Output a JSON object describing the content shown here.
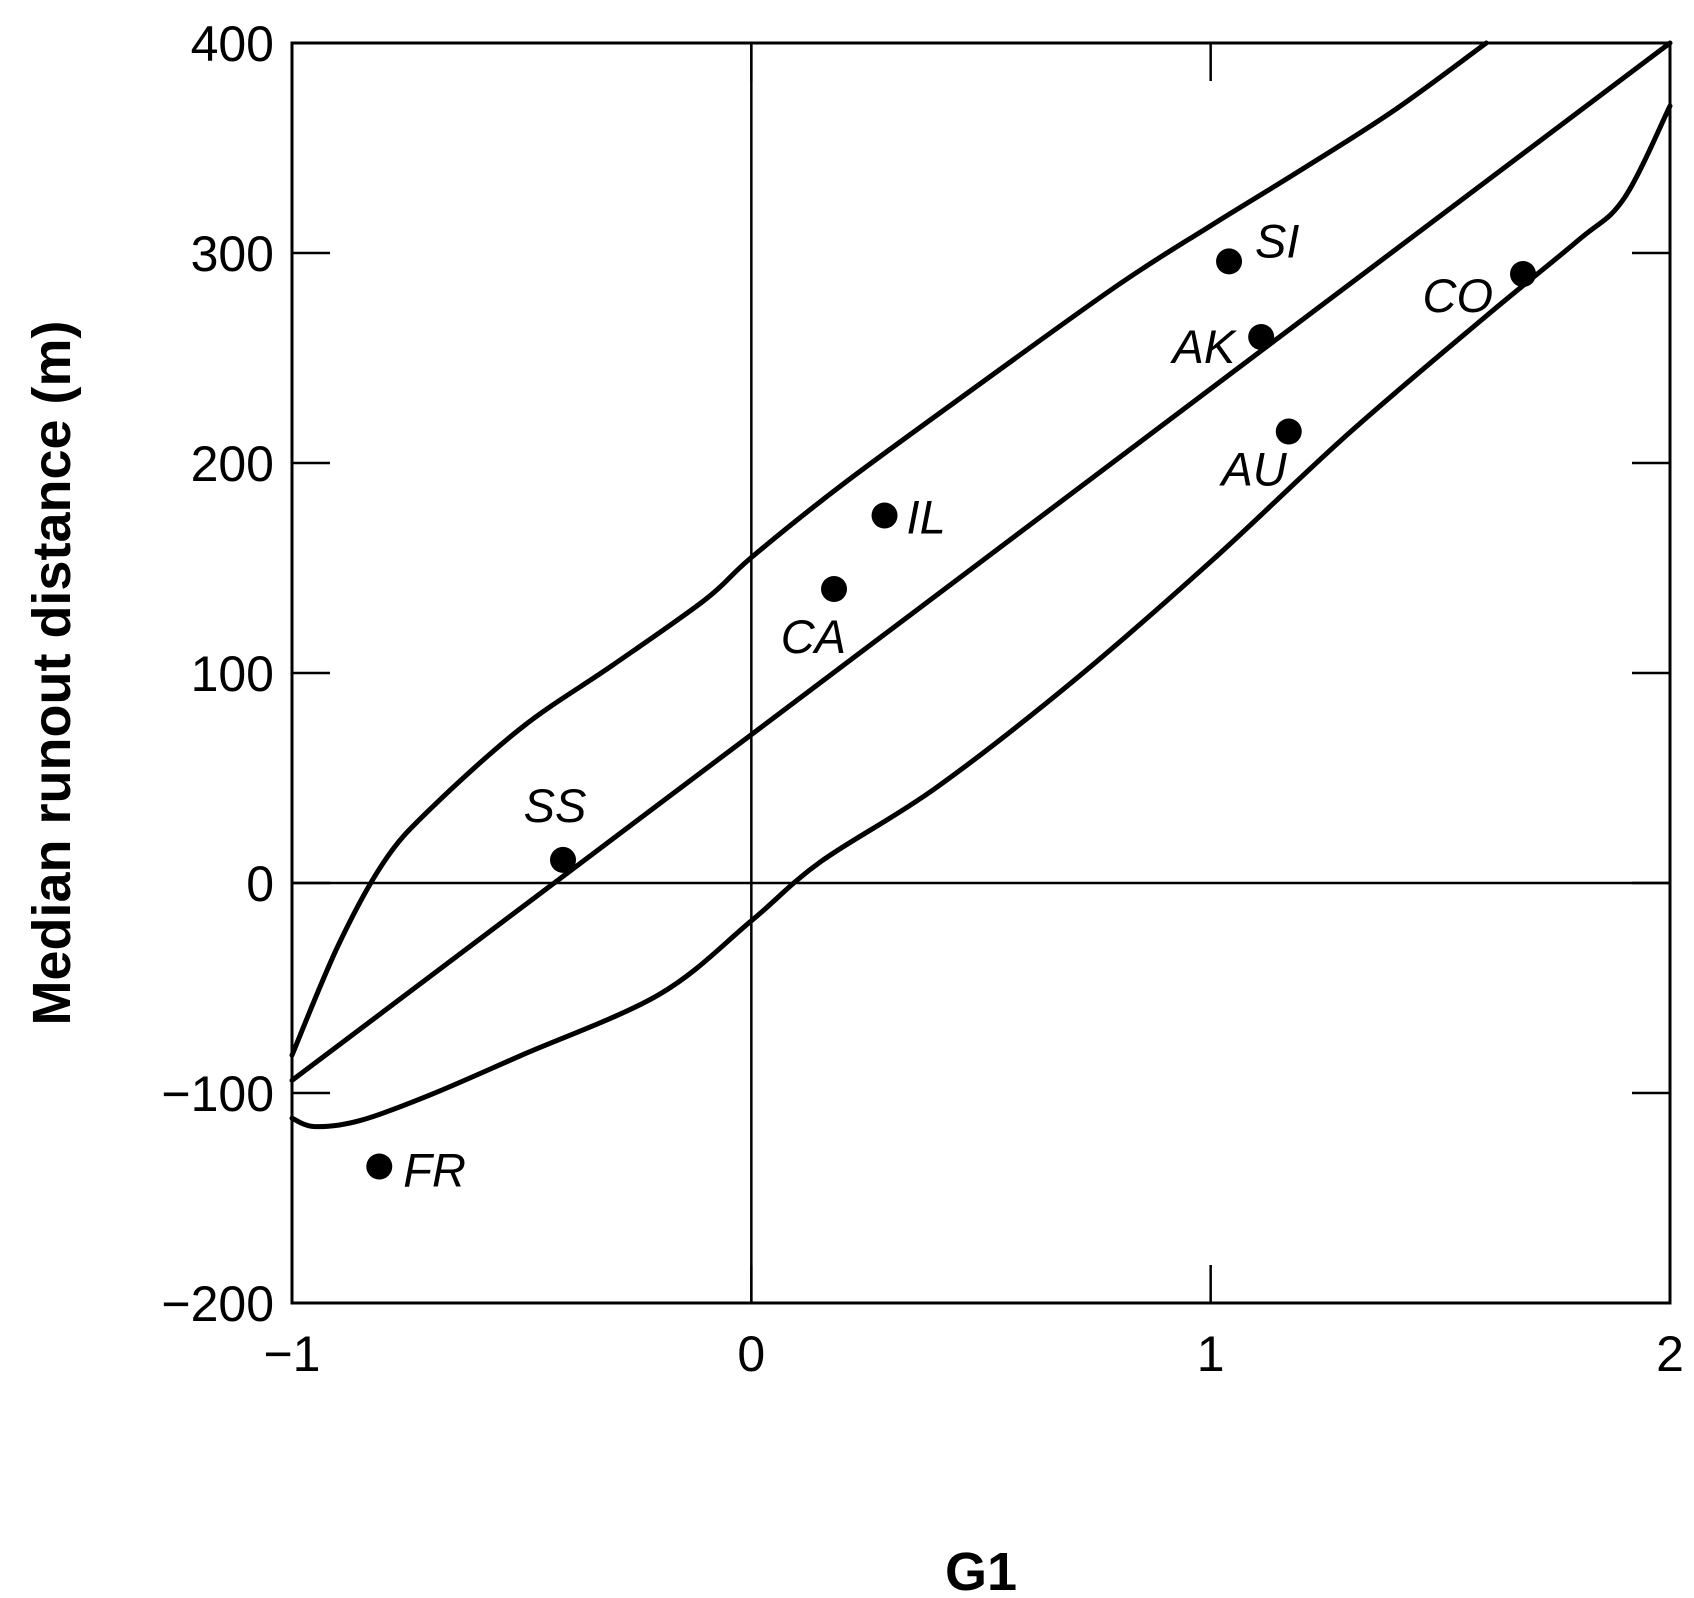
{
  "chart_data": {
    "type": "scatter",
    "title": "",
    "xlabel": "G1",
    "ylabel": "Median runout distance (m)",
    "xlim": [
      -1,
      2
    ],
    "ylim": [
      -200,
      400
    ],
    "x_ticks": [
      -1,
      0,
      1,
      2
    ],
    "y_ticks": [
      -200,
      -100,
      0,
      100,
      200,
      300,
      400
    ],
    "x_tick_labels": [
      "−1",
      "0",
      "1",
      "2"
    ],
    "y_tick_labels": [
      "−200",
      "−100",
      "0",
      "100",
      "200",
      "300",
      "400"
    ],
    "grid": false,
    "zero_lines": true,
    "legend": "none",
    "points": [
      {
        "label": "SI",
        "x": 1.04,
        "y": 296
      },
      {
        "label": "CO",
        "x": 1.68,
        "y": 290
      },
      {
        "label": "AK",
        "x": 1.11,
        "y": 260
      },
      {
        "label": "AU",
        "x": 1.17,
        "y": 215
      },
      {
        "label": "IL",
        "x": 0.29,
        "y": 175
      },
      {
        "label": "CA",
        "x": 0.18,
        "y": 140
      },
      {
        "label": "SS",
        "x": -0.41,
        "y": 11
      },
      {
        "label": "FR",
        "x": -0.81,
        "y": -135
      }
    ],
    "curves": [
      {
        "role": "regression line",
        "points": [
          [
            -1,
            -94
          ],
          [
            2,
            400
          ]
        ]
      },
      {
        "role": "upper confidence bound",
        "points": [
          [
            -1,
            -82
          ],
          [
            -0.9,
            -30
          ],
          [
            -0.8,
            10
          ],
          [
            -0.7,
            35
          ],
          [
            -0.5,
            74
          ],
          [
            -0.3,
            104
          ],
          [
            -0.1,
            135
          ],
          [
            0,
            155
          ],
          [
            0.2,
            190
          ],
          [
            0.5,
            238
          ],
          [
            0.8,
            285
          ],
          [
            1.0,
            313
          ],
          [
            1.2,
            340
          ],
          [
            1.4,
            368
          ],
          [
            1.6,
            400
          ]
        ]
      },
      {
        "role": "lower confidence bound",
        "points": [
          [
            -1,
            -112
          ],
          [
            -0.95,
            -116
          ],
          [
            -0.85,
            -113
          ],
          [
            -0.7,
            -101
          ],
          [
            -0.5,
            -82
          ],
          [
            -0.2,
            -53
          ],
          [
            0,
            -18
          ],
          [
            0.15,
            10
          ],
          [
            0.4,
            45
          ],
          [
            0.7,
            96
          ],
          [
            1.0,
            153
          ],
          [
            1.3,
            214
          ],
          [
            1.6,
            270
          ],
          [
            1.8,
            306
          ],
          [
            1.9,
            326
          ],
          [
            2.0,
            370
          ]
        ]
      }
    ]
  }
}
